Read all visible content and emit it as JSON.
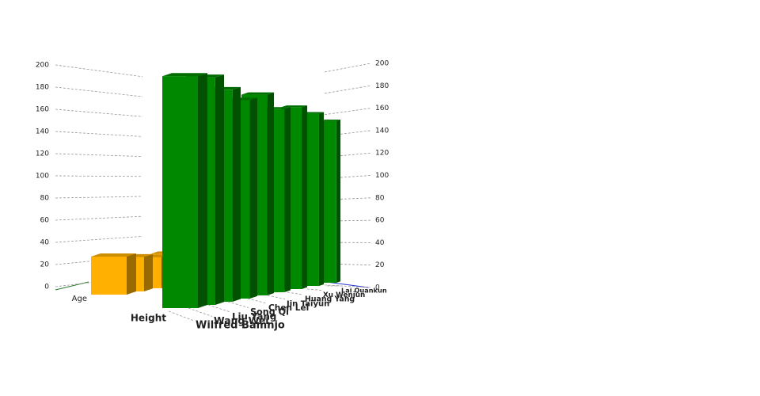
{
  "chart_data": {
    "type": "bar3d",
    "categories": [
      "Wilfred Bamnjo",
      "Wang Wei",
      "Liu Yang",
      "Song Qi",
      "Chen Lei",
      "Jin Taiyun",
      "Huang Yang",
      "Xu Wenjun",
      "Lai Quankun"
    ],
    "series": [
      {
        "name": "Age",
        "color": "#ffb000",
        "values": [
          30,
          28,
          26,
          27,
          25,
          29,
          24,
          26,
          27
        ]
      },
      {
        "name": "Height",
        "color": "#008800",
        "values": [
          183,
          185,
          178,
          172,
          180,
          170,
          175,
          172,
          168
        ]
      }
    ],
    "ylim": [
      0,
      200
    ],
    "yticks": [
      0,
      20,
      40,
      60,
      80,
      100,
      120,
      140,
      160,
      180,
      200
    ],
    "grid": true
  }
}
